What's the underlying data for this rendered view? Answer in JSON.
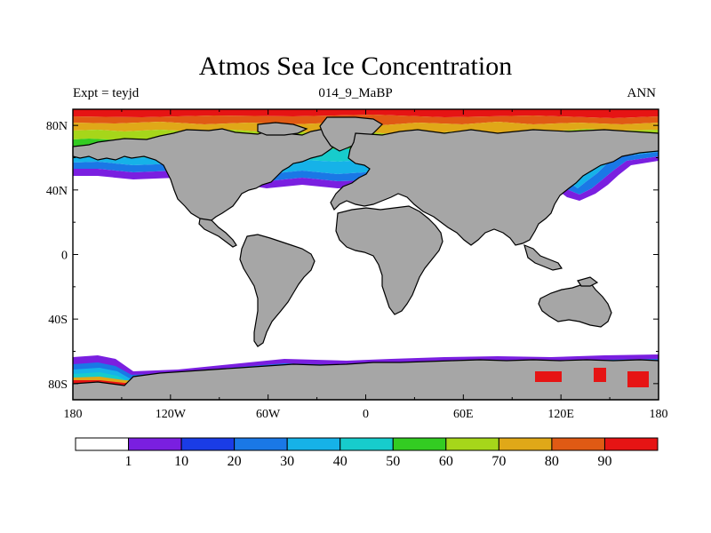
{
  "title": "Atmos Sea Ice Concentration",
  "subtitle_left": "Expt = teyjd",
  "subtitle_center": "014_9_MaBP",
  "subtitle_right": "ANN",
  "map": {
    "projection": "cylindrical equidistant",
    "lon_range": [
      -180,
      180
    ],
    "lat_range": [
      -90,
      90
    ],
    "x_ticks": [
      {
        "value": -180,
        "label": "180"
      },
      {
        "value": -120,
        "label": "120W"
      },
      {
        "value": -60,
        "label": "60W"
      },
      {
        "value": 0,
        "label": "0"
      },
      {
        "value": 60,
        "label": "60E"
      },
      {
        "value": 120,
        "label": "120E"
      },
      {
        "value": 180,
        "label": "180"
      }
    ],
    "y_ticks": [
      {
        "value": 80,
        "label": "80N"
      },
      {
        "value": 40,
        "label": "40N"
      },
      {
        "value": 0,
        "label": "0"
      },
      {
        "value": -40,
        "label": "40S"
      },
      {
        "value": -80,
        "label": "80S"
      }
    ],
    "land_color": "#a6a6a6",
    "ocean_color": "#ffffff"
  },
  "colorbar": {
    "labels": [
      "1",
      "10",
      "20",
      "30",
      "40",
      "50",
      "60",
      "70",
      "80",
      "90"
    ],
    "colors": [
      "#ffffff",
      "#7a1fe0",
      "#1a3ce6",
      "#1a78e6",
      "#16b2e8",
      "#17cccc",
      "#33cc22",
      "#a6d61a",
      "#e0a818",
      "#e05a14",
      "#e61414"
    ]
  }
}
